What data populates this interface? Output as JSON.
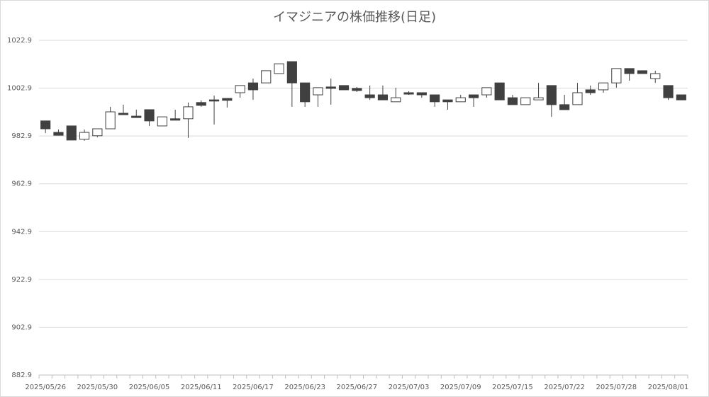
{
  "chart_data": {
    "type": "candlestick",
    "title": "イマジニアの株価推移(日足)",
    "categories": [
      "2025/05/26",
      null,
      null,
      null,
      "2025/05/30",
      null,
      null,
      null,
      "2025/06/05",
      null,
      null,
      null,
      "2025/06/11",
      null,
      null,
      null,
      "2025/06/17",
      null,
      null,
      null,
      "2025/06/23",
      null,
      null,
      null,
      "2025/06/27",
      null,
      null,
      null,
      "2025/07/03",
      null,
      null,
      null,
      "2025/07/09",
      null,
      null,
      null,
      "2025/07/15",
      null,
      null,
      null,
      "2025/07/22",
      null,
      null,
      null,
      "2025/07/28",
      null,
      null,
      null,
      "2025/08/01",
      null
    ],
    "open": [
      989.2,
      984.4,
      987.1,
      981.5,
      983.0,
      985.9,
      992.4,
      991.2,
      993.9,
      987.1,
      990.1,
      990.1,
      996.9,
      998.0,
      998.6,
      1001.0,
      1005.1,
      1005.1,
      1009.0,
      1014.0,
      1005.1,
      1000.1,
      1003.4,
      1004.0,
      1002.8,
      1000.1,
      1000.1,
      997.2,
      1001.0,
      1001.0,
      1000.1,
      998.0,
      997.2,
      1000.1,
      1000.1,
      1005.1,
      998.9,
      996.0,
      998.0,
      1004.0,
      996.0,
      996.0,
      1002.2,
      1002.2,
      1005.1,
      1011.1,
      1010.2,
      1006.9,
      1004.0,
      1000.1
    ],
    "high": [
      989.2,
      985.6,
      987.1,
      985.6,
      985.9,
      995.1,
      996.0,
      993.9,
      993.9,
      990.9,
      993.9,
      996.9,
      997.8,
      999.8,
      998.6,
      1004.0,
      1006.9,
      1010.2,
      1013.1,
      1014.0,
      1005.1,
      1003.1,
      1006.9,
      1004.0,
      1003.4,
      1004.0,
      1004.0,
      1003.1,
      1001.6,
      1001.0,
      1000.1,
      998.0,
      1000.1,
      1000.1,
      1003.1,
      1005.1,
      1000.1,
      998.9,
      1005.1,
      1004.0,
      1000.1,
      1005.1,
      1004.0,
      1005.1,
      1011.1,
      1011.1,
      1010.2,
      1010.2,
      1004.0,
      1000.1
    ],
    "low": [
      984.1,
      983.2,
      981.2,
      980.9,
      982.4,
      985.9,
      991.8,
      990.6,
      987.1,
      987.1,
      989.5,
      982.1,
      995.1,
      987.7,
      994.8,
      998.9,
      998.0,
      1005.1,
      1009.0,
      995.1,
      995.1,
      995.1,
      996.0,
      1002.2,
      1001.3,
      998.0,
      998.0,
      997.2,
      1000.1,
      998.9,
      995.1,
      993.9,
      997.2,
      995.1,
      998.9,
      998.0,
      996.0,
      996.0,
      998.0,
      990.9,
      993.9,
      996.0,
      1000.1,
      1001.0,
      1003.1,
      1006.0,
      1009.0,
      1005.1,
      998.0,
      998.0
    ],
    "close": [
      985.9,
      983.2,
      981.2,
      984.4,
      985.9,
      993.0,
      991.8,
      990.6,
      989.2,
      990.9,
      989.5,
      995.1,
      995.7,
      997.5,
      997.8,
      1004.0,
      1002.2,
      1010.2,
      1013.1,
      1005.1,
      997.2,
      1003.1,
      1002.8,
      1002.2,
      1001.9,
      998.9,
      998.0,
      998.9,
      1000.4,
      1000.1,
      997.2,
      997.2,
      998.9,
      998.9,
      1003.1,
      998.0,
      996.0,
      998.9,
      998.9,
      996.0,
      993.9,
      1001.0,
      1001.0,
      1005.1,
      1011.1,
      1009.0,
      1009.0,
      1009.0,
      998.9,
      998.0
    ],
    "up_color": "#ffffff",
    "down_color": "#404040",
    "ylim": [
      882.9,
      1022.9
    ],
    "yticks": [
      882.9,
      902.9,
      922.9,
      942.9,
      962.9,
      982.9,
      1002.9,
      1022.9
    ],
    "grid": true
  }
}
